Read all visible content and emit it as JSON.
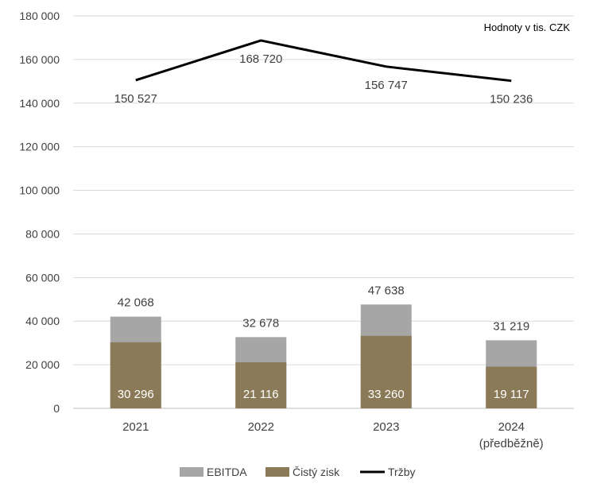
{
  "chart_data": {
    "type": "bar+line",
    "annotation": "Hodnoty v tis. CZK",
    "categories": [
      "2021",
      "2022",
      "2023",
      "2024"
    ],
    "category_sublabels": [
      "",
      "",
      "",
      "(předběžně)"
    ],
    "ylim": [
      0,
      180000
    ],
    "yticks": [
      0,
      20000,
      40000,
      60000,
      80000,
      100000,
      120000,
      140000,
      160000,
      180000
    ],
    "ytick_labels": [
      "0",
      "20 000",
      "40 000",
      "60 000",
      "80 000",
      "100 000",
      "120 000",
      "140 000",
      "160 000",
      "180 000"
    ],
    "grid": true,
    "legend_position": "bottom",
    "series": [
      {
        "name": "EBITDA",
        "kind": "bar",
        "color": "#a6a6a6",
        "values": [
          42068,
          32678,
          47638,
          31219
        ],
        "labels": [
          "42 068",
          "32 678",
          "47 638",
          "31 219"
        ]
      },
      {
        "name": "Čistý zisk",
        "kind": "bar",
        "color": "#8b7a57",
        "values": [
          30296,
          21116,
          33260,
          19117
        ],
        "labels": [
          "30 296",
          "21 116",
          "33 260",
          "19 117"
        ]
      },
      {
        "name": "Tržby",
        "kind": "line",
        "color": "#000000",
        "values": [
          150527,
          168720,
          156747,
          150236
        ],
        "labels": [
          "150 527",
          "168 720",
          "156 747",
          "150 236"
        ]
      }
    ]
  }
}
